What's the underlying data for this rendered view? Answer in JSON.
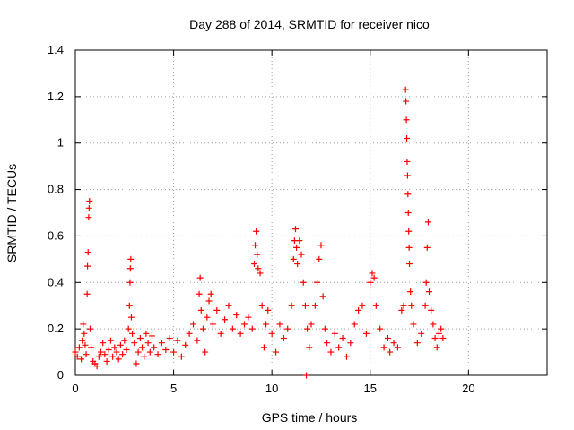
{
  "chart_data": {
    "type": "scatter",
    "title": "Day 288 of 2014, SRMTID for receiver nico",
    "xlabel": "GPS time / hours",
    "ylabel": "SRMTID / TECUs",
    "xlim": [
      0,
      24
    ],
    "ylim": [
      0,
      1.4
    ],
    "xticks": [
      0,
      5,
      10,
      15,
      20
    ],
    "yticks": [
      0,
      0.2,
      0.4,
      0.6,
      0.8,
      1,
      1.2,
      1.4
    ],
    "ytick_labels": [
      "0",
      "0.2",
      "0.4",
      "0.6",
      "0.8",
      "1",
      "1.2",
      "1.4"
    ],
    "grid": true,
    "marker": "+",
    "color": "#ff0000",
    "series": [
      {
        "name": "SRMTID",
        "points": [
          [
            0.0,
            0.1
          ],
          [
            0.1,
            0.08
          ],
          [
            0.2,
            0.12
          ],
          [
            0.3,
            0.07
          ],
          [
            0.35,
            0.15
          ],
          [
            0.4,
            0.22
          ],
          [
            0.45,
            0.18
          ],
          [
            0.5,
            0.13
          ],
          [
            0.55,
            0.09
          ],
          [
            0.6,
            0.35
          ],
          [
            0.62,
            0.47
          ],
          [
            0.65,
            0.53
          ],
          [
            0.68,
            0.68
          ],
          [
            0.7,
            0.72
          ],
          [
            0.72,
            0.75
          ],
          [
            0.75,
            0.2
          ],
          [
            0.8,
            0.12
          ],
          [
            0.9,
            0.06
          ],
          [
            1.0,
            0.05
          ],
          [
            1.1,
            0.04
          ],
          [
            1.2,
            0.08
          ],
          [
            1.3,
            0.1
          ],
          [
            1.4,
            0.14
          ],
          [
            1.5,
            0.09
          ],
          [
            1.6,
            0.06
          ],
          [
            1.7,
            0.11
          ],
          [
            1.8,
            0.15
          ],
          [
            1.9,
            0.08
          ],
          [
            2.0,
            0.12
          ],
          [
            2.1,
            0.1
          ],
          [
            2.2,
            0.07
          ],
          [
            2.3,
            0.13
          ],
          [
            2.4,
            0.09
          ],
          [
            2.5,
            0.15
          ],
          [
            2.6,
            0.11
          ],
          [
            2.7,
            0.2
          ],
          [
            2.75,
            0.3
          ],
          [
            2.78,
            0.4
          ],
          [
            2.8,
            0.46
          ],
          [
            2.82,
            0.5
          ],
          [
            2.85,
            0.25
          ],
          [
            2.9,
            0.18
          ],
          [
            3.0,
            0.14
          ],
          [
            3.1,
            0.05
          ],
          [
            3.2,
            0.1
          ],
          [
            3.3,
            0.16
          ],
          [
            3.4,
            0.12
          ],
          [
            3.5,
            0.08
          ],
          [
            3.6,
            0.18
          ],
          [
            3.7,
            0.14
          ],
          [
            3.8,
            0.1
          ],
          [
            3.9,
            0.17
          ],
          [
            4.0,
            0.12
          ],
          [
            4.2,
            0.09
          ],
          [
            4.4,
            0.14
          ],
          [
            4.6,
            0.11
          ],
          [
            4.8,
            0.16
          ],
          [
            5.0,
            0.1
          ],
          [
            5.2,
            0.15
          ],
          [
            5.4,
            0.08
          ],
          [
            5.6,
            0.13
          ],
          [
            5.8,
            0.18
          ],
          [
            6.0,
            0.22
          ],
          [
            6.2,
            0.15
          ],
          [
            6.3,
            0.35
          ],
          [
            6.35,
            0.42
          ],
          [
            6.4,
            0.28
          ],
          [
            6.5,
            0.2
          ],
          [
            6.6,
            0.1
          ],
          [
            6.7,
            0.25
          ],
          [
            6.8,
            0.32
          ],
          [
            6.9,
            0.35
          ],
          [
            7.0,
            0.22
          ],
          [
            7.2,
            0.28
          ],
          [
            7.4,
            0.18
          ],
          [
            7.6,
            0.24
          ],
          [
            7.8,
            0.3
          ],
          [
            8.0,
            0.2
          ],
          [
            8.2,
            0.26
          ],
          [
            8.4,
            0.18
          ],
          [
            8.6,
            0.22
          ],
          [
            8.8,
            0.25
          ],
          [
            9.0,
            0.2
          ],
          [
            9.1,
            0.48
          ],
          [
            9.15,
            0.56
          ],
          [
            9.2,
            0.62
          ],
          [
            9.25,
            0.52
          ],
          [
            9.3,
            0.46
          ],
          [
            9.4,
            0.44
          ],
          [
            9.5,
            0.3
          ],
          [
            9.6,
            0.12
          ],
          [
            9.7,
            0.22
          ],
          [
            9.8,
            0.28
          ],
          [
            10.0,
            0.18
          ],
          [
            10.2,
            0.1
          ],
          [
            10.4,
            0.22
          ],
          [
            10.6,
            0.16
          ],
          [
            10.8,
            0.2
          ],
          [
            11.0,
            0.3
          ],
          [
            11.1,
            0.5
          ],
          [
            11.15,
            0.58
          ],
          [
            11.2,
            0.63
          ],
          [
            11.25,
            0.55
          ],
          [
            11.3,
            0.48
          ],
          [
            11.4,
            0.58
          ],
          [
            11.5,
            0.52
          ],
          [
            11.6,
            0.4
          ],
          [
            11.7,
            0.3
          ],
          [
            11.75,
            0.0
          ],
          [
            11.8,
            0.2
          ],
          [
            11.9,
            0.12
          ],
          [
            12.0,
            0.22
          ],
          [
            12.2,
            0.3
          ],
          [
            12.3,
            0.4
          ],
          [
            12.4,
            0.5
          ],
          [
            12.5,
            0.56
          ],
          [
            12.6,
            0.34
          ],
          [
            12.7,
            0.2
          ],
          [
            12.8,
            0.14
          ],
          [
            13.0,
            0.1
          ],
          [
            13.2,
            0.18
          ],
          [
            13.4,
            0.12
          ],
          [
            13.6,
            0.16
          ],
          [
            13.8,
            0.08
          ],
          [
            14.0,
            0.14
          ],
          [
            14.2,
            0.22
          ],
          [
            14.4,
            0.28
          ],
          [
            14.6,
            0.3
          ],
          [
            14.8,
            0.18
          ],
          [
            15.0,
            0.4
          ],
          [
            15.1,
            0.44
          ],
          [
            15.2,
            0.42
          ],
          [
            15.3,
            0.3
          ],
          [
            15.5,
            0.2
          ],
          [
            15.7,
            0.12
          ],
          [
            15.9,
            0.16
          ],
          [
            16.0,
            0.1
          ],
          [
            16.2,
            0.14
          ],
          [
            16.4,
            0.12
          ],
          [
            16.6,
            0.28
          ],
          [
            16.7,
            0.3
          ],
          [
            16.8,
            1.23
          ],
          [
            16.82,
            1.18
          ],
          [
            16.84,
            1.1
          ],
          [
            16.86,
            1.02
          ],
          [
            16.88,
            0.92
          ],
          [
            16.9,
            0.86
          ],
          [
            16.92,
            0.78
          ],
          [
            16.94,
            0.7
          ],
          [
            16.96,
            0.62
          ],
          [
            16.98,
            0.55
          ],
          [
            17.0,
            0.48
          ],
          [
            17.05,
            0.36
          ],
          [
            17.1,
            0.3
          ],
          [
            17.2,
            0.22
          ],
          [
            17.4,
            0.14
          ],
          [
            17.6,
            0.18
          ],
          [
            17.8,
            0.3
          ],
          [
            17.85,
            0.4
          ],
          [
            17.9,
            0.55
          ],
          [
            17.95,
            0.66
          ],
          [
            18.0,
            0.36
          ],
          [
            18.1,
            0.28
          ],
          [
            18.2,
            0.22
          ],
          [
            18.3,
            0.16
          ],
          [
            18.4,
            0.12
          ],
          [
            18.5,
            0.18
          ],
          [
            18.6,
            0.2
          ],
          [
            18.7,
            0.16
          ]
        ]
      }
    ]
  }
}
